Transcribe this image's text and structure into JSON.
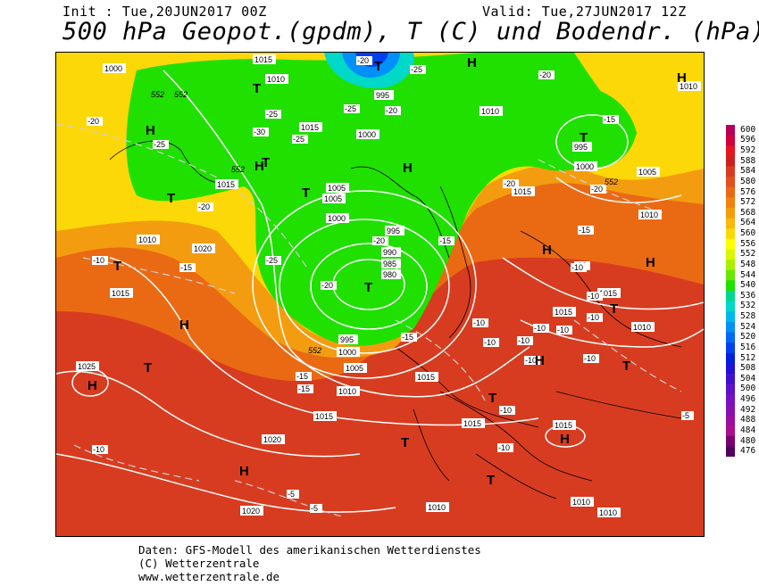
{
  "header": {
    "init_label": "Init : Tue,20JUN2017 00Z",
    "valid_label": "Valid: Tue,27JUN2017 12Z",
    "title": "500 hPa Geopot.(gpdm), T (C) und Bodendr. (hPa)"
  },
  "footer": {
    "line1": "Daten: GFS-Modell des amerikanischen Wetterdienstes",
    "line2": "(C) Wetterzentrale",
    "line3": "www.wetterzentrale.de"
  },
  "legend": {
    "levels": [
      "600",
      "596",
      "592",
      "588",
      "584",
      "580",
      "576",
      "572",
      "568",
      "564",
      "560",
      "556",
      "552",
      "548",
      "544",
      "540",
      "536",
      "532",
      "528",
      "524",
      "520",
      "516",
      "512",
      "508",
      "504",
      "500",
      "496",
      "492",
      "488",
      "484",
      "480",
      "476"
    ],
    "colors": [
      "#b4005a",
      "#d2003c",
      "#e6141e",
      "#cc2020",
      "#d83c20",
      "#e25020",
      "#ea6a14",
      "#f08210",
      "#f49c10",
      "#f8b80c",
      "#fcd808",
      "#ffff00",
      "#d8f800",
      "#a8f000",
      "#68e800",
      "#20e000",
      "#00d890",
      "#00d8c8",
      "#00b8f0",
      "#0090f8",
      "#0068f8",
      "#0040f0",
      "#0020e0",
      "#2010d8",
      "#4010d0",
      "#6010c8",
      "#7810c0",
      "#8810b0",
      "#9810a0",
      "#a81090",
      "#780070",
      "#500060"
    ]
  },
  "map": {
    "highs": [
      {
        "label": "H"
      },
      {
        "label": "H"
      },
      {
        "label": "H"
      },
      {
        "label": "H"
      },
      {
        "label": "H"
      },
      {
        "label": "H"
      },
      {
        "label": "H"
      },
      {
        "label": "H"
      },
      {
        "label": "H"
      },
      {
        "label": "H"
      },
      {
        "label": "H"
      },
      {
        "label": "H"
      }
    ],
    "lows": [
      {
        "label": "T"
      },
      {
        "label": "T"
      },
      {
        "label": "T"
      },
      {
        "label": "T"
      },
      {
        "label": "T"
      },
      {
        "label": "T"
      },
      {
        "label": "T"
      },
      {
        "label": "T"
      },
      {
        "label": "T"
      },
      {
        "label": "T"
      },
      {
        "label": "T"
      },
      {
        "label": "T"
      },
      {
        "label": "T"
      },
      {
        "label": "T"
      }
    ],
    "pressure_labels": [
      "1000",
      "1015",
      "1010",
      "995",
      "1000",
      "1005",
      "1010",
      "1015",
      "1015",
      "1005",
      "1000",
      "995",
      "990",
      "985",
      "980",
      "995",
      "1000",
      "1005",
      "1010",
      "1015",
      "1020",
      "1020",
      "1015",
      "1010",
      "1025",
      "1015",
      "1015",
      "1015",
      "1010",
      "1010",
      "1015",
      "1010",
      "1010",
      "995",
      "1000",
      "1010",
      "1015",
      "1005",
      "1010",
      "1015",
      "1020"
    ],
    "temp_labels": [
      "-20",
      "-25",
      "-25",
      "-20",
      "-20",
      "-25",
      "-25",
      "-30",
      "-25",
      "-20",
      "-15",
      "-20",
      "-20",
      "-20",
      "-15",
      "-25",
      "-15",
      "-20",
      "-20",
      "-15",
      "-10",
      "-10",
      "-15",
      "-15",
      "-10",
      "-10",
      "-10",
      "-10",
      "-10",
      "-10",
      "-10",
      "-10",
      "-10",
      "-15",
      "-10",
      "-10",
      "-10",
      "-5",
      "-5",
      "-5",
      "-10"
    ],
    "height_labels": [
      "552",
      "552",
      "552",
      "552",
      "552"
    ]
  }
}
